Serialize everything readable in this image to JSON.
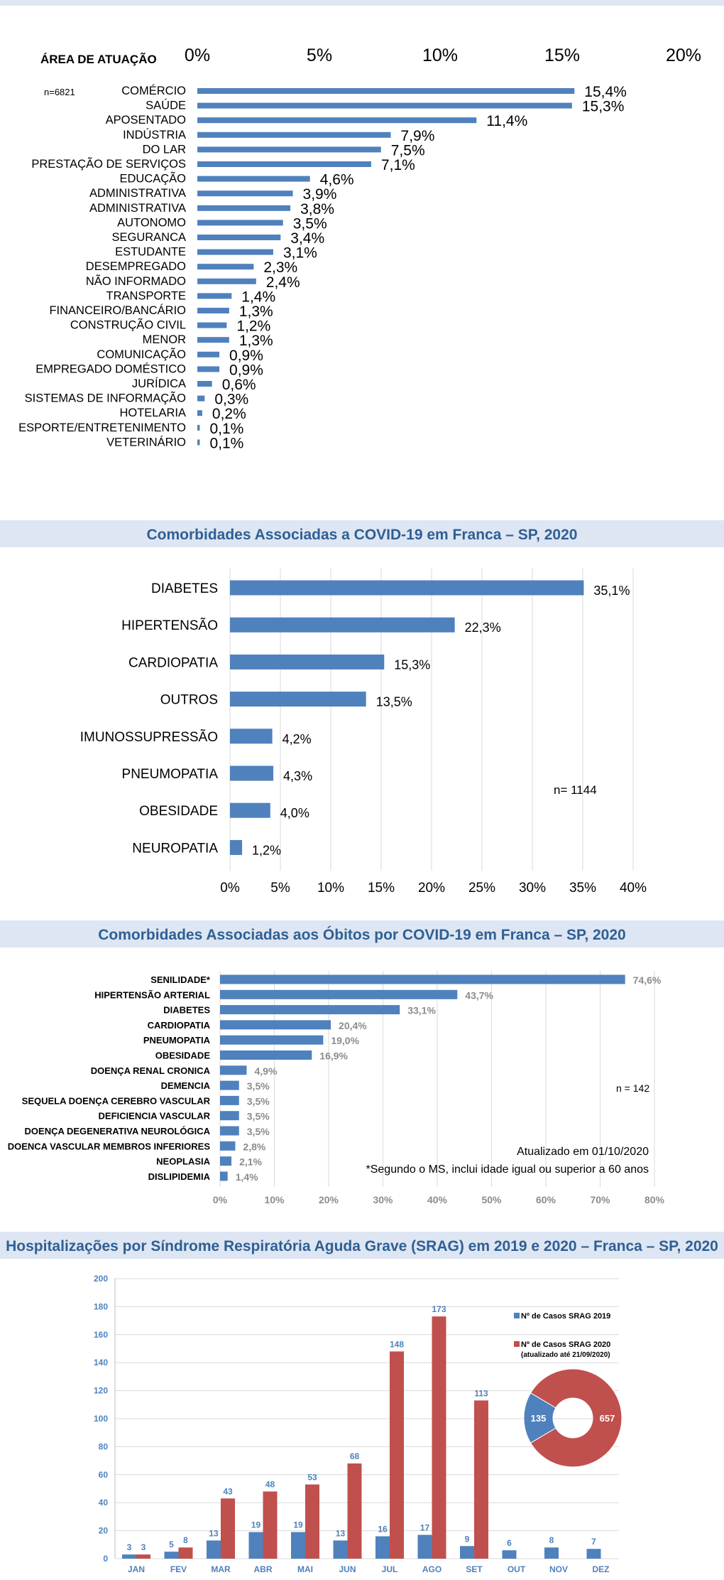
{
  "chart_data": [
    {
      "type": "bar",
      "orientation": "horizontal",
      "title": "",
      "category_header": "ÁREA DE ATUAÇÃO",
      "annotation_n": "n=6821",
      "xlim": [
        0,
        20
      ],
      "x_ticks": [
        "0%",
        "5%",
        "10%",
        "15%",
        "20%"
      ],
      "grid": false,
      "categories": [
        "COMÉRCIO",
        "SAÚDE",
        "APOSENTADO",
        "INDÚSTRIA",
        "DO LAR",
        "PRESTAÇÃO DE SERVIÇOS",
        "EDUCAÇÃO",
        "ADMINISTRATIVA",
        "ADMINISTRATIVA",
        "AUTONOMO",
        "SEGURANCA",
        "ESTUDANTE",
        "DESEMPREGADO",
        "NÃO INFORMADO",
        "TRANSPORTE",
        "FINANCEIRO/BANCÁRIO",
        "CONSTRUÇÃO CIVIL",
        "MENOR",
        "COMUNICAÇÃO",
        "EMPREGADO DOMÉSTICO",
        "JURÍDICA",
        "SISTEMAS DE INFORMAÇÃO",
        "HOTELARIA",
        "ESPORTE/ENTRETENIMENTO",
        "VETERINÁRIO"
      ],
      "values": [
        15.4,
        15.3,
        11.4,
        7.9,
        7.5,
        7.1,
        4.6,
        3.9,
        3.8,
        3.5,
        3.4,
        3.1,
        2.3,
        2.4,
        1.4,
        1.3,
        1.2,
        1.3,
        0.9,
        0.9,
        0.6,
        0.3,
        0.2,
        0.1,
        0.1
      ],
      "value_labels": [
        "15,4%",
        "15,3%",
        "11,4%",
        "7,9%",
        "7,5%",
        "7,1%",
        "4,6%",
        "3,9%",
        "3,8%",
        "3,5%",
        "3,4%",
        "3,1%",
        "2,3%",
        "2,4%",
        "1,4%",
        "1,3%",
        "1,2%",
        "1,3%",
        "0,9%",
        "0,9%",
        "0,6%",
        "0,3%",
        "0,2%",
        "0,1%",
        "0,1%"
      ],
      "bar_color": "#4f81bd"
    },
    {
      "type": "bar",
      "orientation": "horizontal",
      "title": "Comorbidades Associadas a COVID-19 em Franca – SP, 2020",
      "annotation_n": "n= 1144",
      "xlim": [
        0,
        40
      ],
      "x_ticks": [
        "0%",
        "5%",
        "10%",
        "15%",
        "20%",
        "25%",
        "30%",
        "35%",
        "40%"
      ],
      "grid": true,
      "categories": [
        "DIABETES",
        "HIPERTENSÃO",
        "CARDIOPATIA",
        "OUTROS",
        "IMUNOSSUPRESSÃO",
        "PNEUMOPATIA",
        "OBESIDADE",
        "NEUROPATIA"
      ],
      "values": [
        35.1,
        22.3,
        15.3,
        13.5,
        4.2,
        4.3,
        4.0,
        1.2
      ],
      "value_labels": [
        "35,1%",
        "22,3%",
        "15,3%",
        "13,5%",
        "4,2%",
        "4,3%",
        "4,0%",
        "1,2%"
      ],
      "bar_color": "#4f81bd"
    },
    {
      "type": "bar",
      "orientation": "horizontal",
      "title": "Comorbidades Associadas aos Óbitos por COVID-19 em Franca – SP, 2020",
      "annotation_n": "n = 142",
      "updated_label": "Atualizado em  01/10/2020",
      "footnote": "*Segundo o MS, inclui idade igual ou superior a 60 anos",
      "xlim": [
        0,
        80
      ],
      "x_ticks": [
        "0%",
        "10%",
        "20%",
        "30%",
        "40%",
        "50%",
        "60%",
        "70%",
        "80%"
      ],
      "grid": true,
      "categories": [
        "SENILIDADE*",
        "HIPERTENSÃO ARTERIAL",
        "DIABETES",
        "CARDIOPATIA",
        "PNEUMOPATIA",
        "OBESIDADE",
        "DOENÇA RENAL CRONICA",
        "DEMENCIA",
        "SEQUELA DOENÇA CEREBRO VASCULAR",
        "DEFICIENCIA VASCULAR",
        "DOENÇA DEGENERATIVA NEUROLÓGICA",
        "DOENCA VASCULAR MEMBROS INFERIORES",
        "NEOPLASIA",
        "DISLIPIDEMIA"
      ],
      "values": [
        74.6,
        43.7,
        33.1,
        20.4,
        19.0,
        16.9,
        4.9,
        3.5,
        3.5,
        3.5,
        3.5,
        2.8,
        2.1,
        1.4
      ],
      "value_labels": [
        "74,6%",
        "43,7%",
        "33,1%",
        "20,4%",
        "19,0%",
        "16,9%",
        "4,9%",
        "3,5%",
        "3,5%",
        "3,5%",
        "3,5%",
        "2,8%",
        "2,1%",
        "1,4%"
      ],
      "bar_color": "#4f81bd"
    },
    {
      "type": "bar",
      "title": "Hospitalizações por Síndrome Respiratória Aguda Grave (SRAG) em 2019 e 2020 – Franca – SP, 2020",
      "ylim": [
        0,
        200
      ],
      "y_ticks": [
        "0",
        "20",
        "40",
        "60",
        "80",
        "100",
        "120",
        "140",
        "160",
        "180",
        "200"
      ],
      "grid": true,
      "categories": [
        "JAN",
        "FEV",
        "MAR",
        "ABR",
        "MAI",
        "JUN",
        "JUL",
        "AGO",
        "SET",
        "OUT",
        "NOV",
        "DEZ"
      ],
      "series": [
        {
          "name": "Nº de Casos SRAG 2019",
          "color": "#4f81bd",
          "values": [
            3,
            5,
            13,
            19,
            19,
            13,
            16,
            17,
            9,
            6,
            8,
            7
          ]
        },
        {
          "name": "Nº de Casos SRAG 2020",
          "color": "#c0504d",
          "values": [
            3,
            8,
            43,
            48,
            53,
            68,
            148,
            173,
            113,
            null,
            null,
            null
          ]
        }
      ],
      "legend_note": "(atualizado até 21/09/2020)",
      "legend_position": "right",
      "donut": {
        "values": [
          135,
          657
        ],
        "labels": [
          "135",
          "657"
        ],
        "colors": [
          "#4f81bd",
          "#c0504d"
        ]
      }
    }
  ]
}
